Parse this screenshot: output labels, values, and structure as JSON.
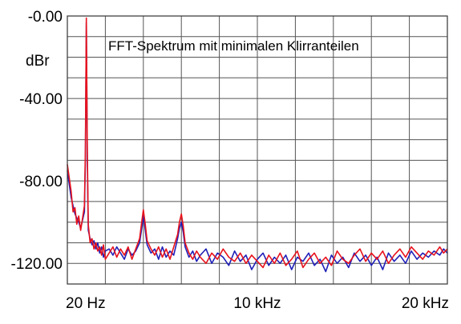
{
  "chart_data": {
    "type": "line",
    "title": "FFT-Spektrum mit minimalen Klirranteilen",
    "ylabel": "dBr",
    "xlabel": "",
    "xlim": [
      0,
      20000
    ],
    "ylim": [
      -130,
      0
    ],
    "y_ticks": [
      {
        "value": 0,
        "label": "-0.00"
      },
      {
        "value": -40,
        "label": "-40.00"
      },
      {
        "value": -80,
        "label": "-80.00"
      },
      {
        "value": -120,
        "label": "-120.00"
      }
    ],
    "x_ticks": [
      {
        "value": 20,
        "label": "20 Hz"
      },
      {
        "value": 10000,
        "label": "10 kHz"
      },
      {
        "value": 20000,
        "label": "20 kHz"
      }
    ],
    "grid": true,
    "colors": {
      "left": "#2020b8",
      "right": "#e8121c",
      "grid": "#555555"
    },
    "series": [
      {
        "color": "#2020b8",
        "x": [
          0,
          200,
          300,
          400,
          500,
          600,
          700,
          800,
          900,
          950,
          1000,
          1050,
          1100,
          1200,
          1300,
          1400,
          1500,
          1600,
          1700,
          1800,
          1900,
          2000,
          2200,
          2400,
          2600,
          2800,
          3000,
          3200,
          3400,
          3600,
          3800,
          3900,
          4000,
          4100,
          4200,
          4400,
          4600,
          4800,
          5000,
          5200,
          5400,
          5600,
          5800,
          5900,
          6000,
          6100,
          6200,
          6400,
          6600,
          6800,
          7000,
          7300,
          7600,
          7900,
          8200,
          8500,
          8800,
          9100,
          9400,
          9700,
          10000,
          10300,
          10600,
          10900,
          11200,
          11500,
          11800,
          12100,
          12400,
          12700,
          13000,
          13300,
          13600,
          13900,
          14200,
          14500,
          14800,
          15100,
          15400,
          15700,
          16000,
          16300,
          16600,
          16900,
          17200,
          17500,
          17800,
          18100,
          18400,
          18700,
          19000,
          19300,
          19600,
          19800,
          20000
        ],
        "values": [
          -75,
          -88,
          -92,
          -96,
          -98,
          -100,
          -103,
          -99,
          -95,
          -70,
          -3,
          -70,
          -104,
          -108,
          -111,
          -109,
          -113,
          -110,
          -115,
          -112,
          -117,
          -114,
          -113,
          -116,
          -112,
          -115,
          -118,
          -113,
          -116,
          -114,
          -110,
          -104,
          -97,
          -104,
          -111,
          -115,
          -113,
          -118,
          -112,
          -117,
          -114,
          -116,
          -108,
          -103,
          -100,
          -105,
          -112,
          -117,
          -114,
          -119,
          -116,
          -113,
          -120,
          -115,
          -117,
          -121,
          -114,
          -119,
          -116,
          -123,
          -118,
          -115,
          -121,
          -117,
          -120,
          -116,
          -123,
          -117,
          -119,
          -115,
          -121,
          -118,
          -124,
          -116,
          -120,
          -117,
          -122,
          -115,
          -119,
          -116,
          -121,
          -117,
          -123,
          -115,
          -119,
          -116,
          -120,
          -114,
          -118,
          -115,
          -117,
          -114,
          -116,
          -113,
          -115
        ]
      },
      {
        "color": "#e8121c",
        "x": [
          0,
          200,
          300,
          400,
          500,
          600,
          700,
          800,
          900,
          950,
          1000,
          1050,
          1100,
          1200,
          1300,
          1400,
          1500,
          1600,
          1700,
          1800,
          1900,
          2000,
          2200,
          2400,
          2600,
          2800,
          3000,
          3200,
          3400,
          3600,
          3800,
          3900,
          4000,
          4100,
          4200,
          4400,
          4600,
          4800,
          5000,
          5200,
          5400,
          5600,
          5800,
          5900,
          6000,
          6100,
          6200,
          6400,
          6600,
          6800,
          7000,
          7300,
          7600,
          7900,
          8200,
          8500,
          8800,
          9100,
          9400,
          9700,
          10000,
          10300,
          10600,
          10900,
          11200,
          11500,
          11800,
          12100,
          12400,
          12700,
          13000,
          13300,
          13600,
          13900,
          14200,
          14500,
          14800,
          15100,
          15400,
          15700,
          16000,
          16300,
          16600,
          16900,
          17200,
          17500,
          17800,
          18100,
          18400,
          18700,
          19000,
          19300,
          19600,
          19800,
          20000
        ],
        "values": [
          -72,
          -85,
          -95,
          -93,
          -101,
          -97,
          -104,
          -98,
          -92,
          -65,
          -1,
          -65,
          -101,
          -110,
          -108,
          -113,
          -110,
          -114,
          -112,
          -116,
          -111,
          -118,
          -115,
          -112,
          -117,
          -113,
          -116,
          -112,
          -118,
          -113,
          -108,
          -101,
          -94,
          -101,
          -109,
          -113,
          -116,
          -112,
          -117,
          -113,
          -118,
          -112,
          -106,
          -100,
          -96,
          -102,
          -110,
          -115,
          -118,
          -114,
          -117,
          -120,
          -115,
          -118,
          -113,
          -117,
          -119,
          -115,
          -120,
          -116,
          -119,
          -122,
          -116,
          -120,
          -115,
          -121,
          -118,
          -114,
          -122,
          -118,
          -115,
          -120,
          -117,
          -121,
          -114,
          -118,
          -120,
          -116,
          -113,
          -119,
          -115,
          -118,
          -114,
          -120,
          -116,
          -113,
          -117,
          -112,
          -115,
          -118,
          -114,
          -116,
          -112,
          -115,
          -113
        ]
      }
    ]
  }
}
